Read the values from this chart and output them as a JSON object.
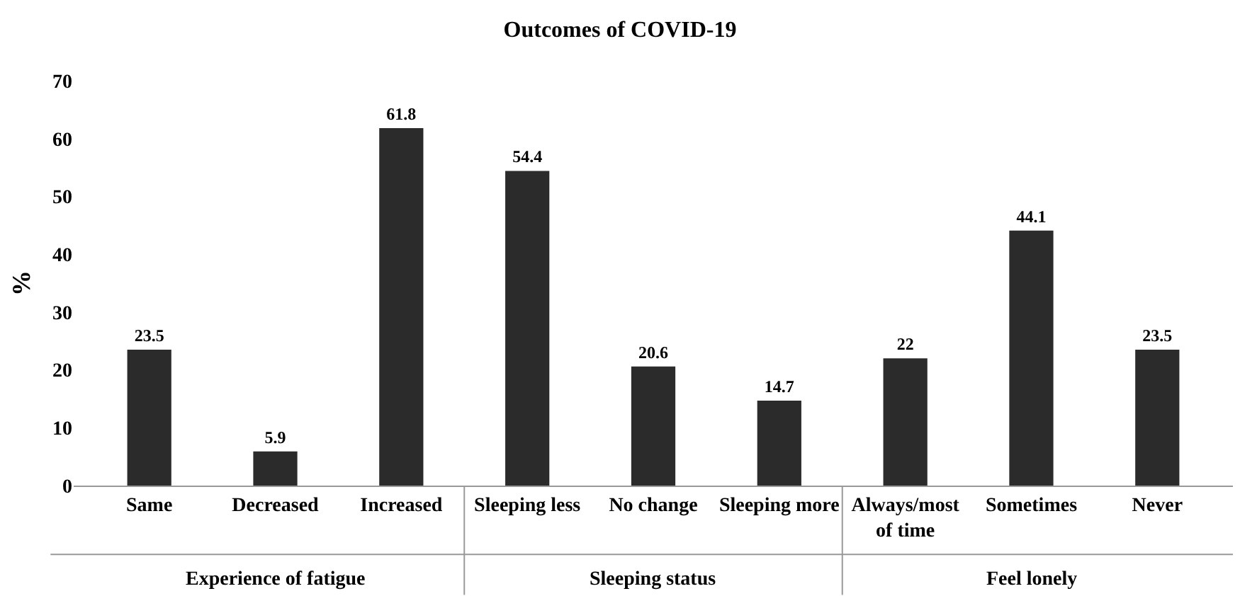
{
  "chart_data": {
    "type": "bar",
    "title": "Outcomes of COVID-19",
    "ylabel": "%",
    "categories": [
      "Same",
      "Decreased",
      "Increased",
      "Sleeping less",
      "No change",
      "Sleeping more",
      "Always/most of time",
      "Sometimes",
      "Never"
    ],
    "values": [
      23.5,
      5.9,
      61.8,
      54.4,
      20.6,
      14.7,
      22,
      44.1,
      23.5
    ],
    "color": "#2b2b2b",
    "ylim": [
      0,
      70
    ],
    "yticks": [
      0,
      10,
      20,
      30,
      40,
      50,
      60,
      70
    ],
    "grid": false,
    "data_labels": true,
    "annotations": [
      "Experience of fatigue",
      "Sleeping status",
      "Feel lonely"
    ]
  }
}
